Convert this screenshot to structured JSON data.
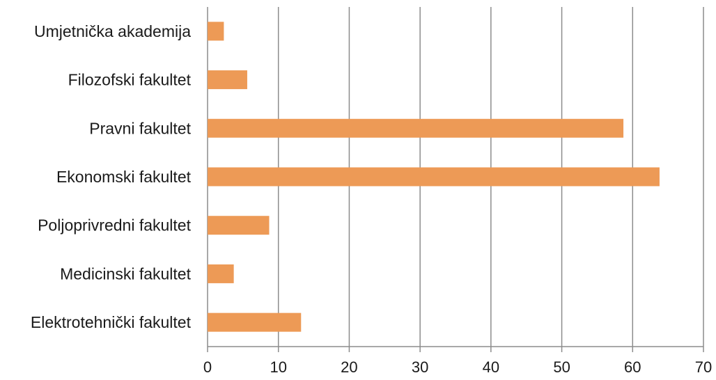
{
  "chart_data": {
    "type": "bar",
    "orientation": "horizontal",
    "categories": [
      "Umjetnička akademija",
      "Filozofski fakultet",
      "Pravni fakultet",
      "Ekonomski fakultet",
      "Poljoprivredni fakultet",
      "Medicinski fakultet",
      "Elektrotehnički fakultet"
    ],
    "values": [
      2.3,
      5.6,
      58.7,
      63.8,
      8.7,
      3.7,
      13.2
    ],
    "xlim": [
      0,
      70
    ],
    "xticks": [
      0,
      10,
      20,
      30,
      40,
      50,
      60,
      70
    ],
    "xtick_labels": [
      "0",
      "10",
      "20",
      "30",
      "40",
      "50",
      "60",
      "70"
    ],
    "title": "",
    "xlabel": "",
    "ylabel": "",
    "grid": "vertical",
    "legend": "none",
    "bar_color": "#ED9A56",
    "grid_color": "#8C8C8C"
  }
}
